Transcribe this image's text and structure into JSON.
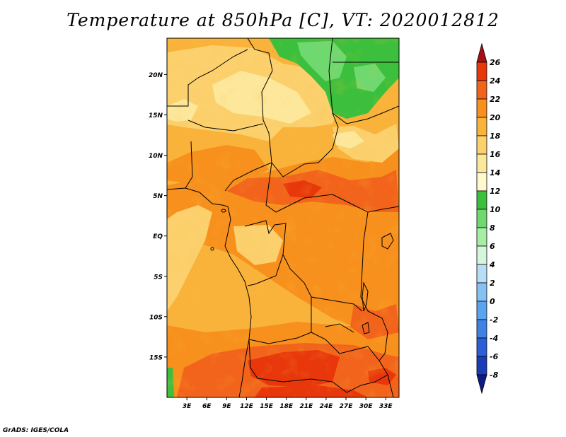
{
  "title": "Temperature at 850hPa [C], VT: 2020012812",
  "credit": "GrADS: IGES/COLA",
  "map": {
    "lat_labels": [
      "20N",
      "15N",
      "10N",
      "5N",
      "EQ",
      "5S",
      "10S",
      "15S"
    ],
    "lon_labels": [
      "3E",
      "6E",
      "9E",
      "12E",
      "15E",
      "18E",
      "21E",
      "24E",
      "27E",
      "30E",
      "33E"
    ],
    "lat_range": [
      -20,
      24.5
    ],
    "lon_range": [
      0,
      35
    ],
    "region": "Central Africa"
  },
  "colorbar": {
    "units": "C",
    "levels": [
      "26",
      "24",
      "22",
      "20",
      "18",
      "16",
      "14",
      "12",
      "10",
      "8",
      "6",
      "4",
      "2",
      "0",
      "-2",
      "-4",
      "-6",
      "-8"
    ],
    "colors": [
      "#a50f15",
      "#e8370b",
      "#f2641b",
      "#f7901d",
      "#f9b23a",
      "#fbd06d",
      "#fde79b",
      "#fffacd",
      "#3cbf3c",
      "#6fd86f",
      "#a6eea6",
      "#d4f7dc",
      "#b8def7",
      "#86c1f4",
      "#5aa3ef",
      "#3e82e6",
      "#2a5fd6",
      "#1a3cb8",
      "#101a86"
    ]
  }
}
